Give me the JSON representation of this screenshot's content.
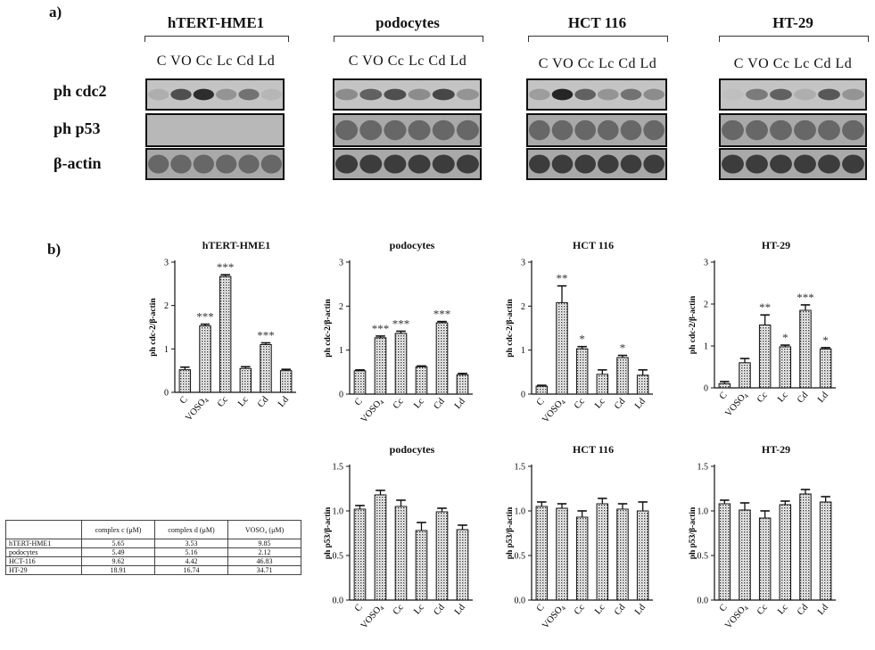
{
  "panel_a_label": "a)",
  "panel_b_label": "b)",
  "lanes_text": "C VO Cc Lc Cd Ld",
  "blot_cell_lines": [
    "hTERT-HME1",
    "podocytes",
    "HCT 116",
    "HT-29"
  ],
  "blot_rows": [
    "ph cdc2",
    "ph p53",
    "β-actin"
  ],
  "table": {
    "headers": [
      "complex c (μM)",
      "complex d (μM)",
      "VOSO₄ (μM)"
    ],
    "rows": [
      {
        "name": "hTERT-HME1",
        "c": "5.65",
        "d": "3.53",
        "v": "9.85"
      },
      {
        "name": "podocytes",
        "c": "5.49",
        "d": "5.16",
        "v": "2.12"
      },
      {
        "name": "HCT-116",
        "c": "9.62",
        "d": "4.42",
        "v": "46.83"
      },
      {
        "name": "HT-29",
        "c": "18.91",
        "d": "16.74",
        "v": "34.71"
      }
    ]
  },
  "chart_data": [
    {
      "type": "bar",
      "title": "hTERT-HME1",
      "ylabel": "ph cdc-2/β-actin",
      "ylim": [
        0,
        3
      ],
      "yticks": [
        "0",
        "1",
        "2",
        "3"
      ],
      "categories": [
        "C",
        "VOSO₄",
        "Cc",
        "Lc",
        "Cd",
        "Ld"
      ],
      "values": [
        0.52,
        1.53,
        2.67,
        0.55,
        1.1,
        0.5
      ],
      "errors": [
        0.06,
        0.04,
        0.04,
        0.04,
        0.04,
        0.03
      ],
      "annotations": [
        "",
        "***",
        "***",
        "",
        "***",
        ""
      ]
    },
    {
      "type": "bar",
      "title": "podocytes",
      "ylabel": "ph cdc-2/β-actin",
      "ylim": [
        0,
        3
      ],
      "yticks": [
        "0",
        "1",
        "2",
        "3"
      ],
      "categories": [
        "C",
        "VOSO₄",
        "Cc",
        "Lc",
        "Cd",
        "Ld"
      ],
      "values": [
        0.53,
        1.28,
        1.38,
        0.62,
        1.62,
        0.44
      ],
      "errors": [
        0.02,
        0.04,
        0.05,
        0.02,
        0.03,
        0.03
      ],
      "annotations": [
        "",
        "***",
        "***",
        "",
        "***",
        ""
      ]
    },
    {
      "type": "bar",
      "title": "HCT 116",
      "ylabel": "ph cdc-2/β-actin",
      "ylim": [
        0,
        3
      ],
      "yticks": [
        "0",
        "1",
        "2",
        "3"
      ],
      "categories": [
        "C",
        "VOSO₄",
        "Cc",
        "Lc",
        "Cd",
        "Ld"
      ],
      "values": [
        0.18,
        2.08,
        1.03,
        0.45,
        0.83,
        0.43
      ],
      "errors": [
        0.02,
        0.38,
        0.05,
        0.1,
        0.05,
        0.12
      ],
      "annotations": [
        "",
        "**",
        "*",
        "",
        "*",
        ""
      ]
    },
    {
      "type": "bar",
      "title": "HT-29",
      "ylabel": "ph cdc-2/β-actin",
      "ylim": [
        0,
        3
      ],
      "yticks": [
        "0",
        "1",
        "2",
        "3"
      ],
      "categories": [
        "C",
        "VOSO₄",
        "Cc",
        "Lc",
        "Cd",
        "Ld"
      ],
      "values": [
        0.1,
        0.6,
        1.5,
        0.98,
        1.85,
        0.93
      ],
      "errors": [
        0.05,
        0.1,
        0.24,
        0.04,
        0.13,
        0.03
      ],
      "annotations": [
        "",
        "",
        "**",
        "*",
        "***",
        "*"
      ]
    },
    {
      "type": "bar",
      "title": "podocytes",
      "ylabel": "ph p53/β-actin",
      "ylim": [
        0,
        1.5
      ],
      "yticks": [
        "0.0",
        "0.5",
        "1.0",
        "1.5"
      ],
      "categories": [
        "C",
        "VOSO₄",
        "Cc",
        "Lc",
        "Cd",
        "Ld"
      ],
      "values": [
        1.02,
        1.18,
        1.05,
        0.78,
        0.99,
        0.79
      ],
      "errors": [
        0.04,
        0.05,
        0.07,
        0.09,
        0.04,
        0.05
      ],
      "annotations": [
        "",
        "",
        "",
        "",
        "",
        ""
      ]
    },
    {
      "type": "bar",
      "title": "HCT 116",
      "ylabel": "ph p53/β-actin",
      "ylim": [
        0,
        1.5
      ],
      "yticks": [
        "0.0",
        "0.5",
        "1.0",
        "1.5"
      ],
      "categories": [
        "C",
        "VOSO₄",
        "Cc",
        "Lc",
        "Cd",
        "Ld"
      ],
      "values": [
        1.05,
        1.03,
        0.93,
        1.08,
        1.02,
        1.0
      ],
      "errors": [
        0.05,
        0.05,
        0.07,
        0.06,
        0.06,
        0.1
      ],
      "annotations": [
        "",
        "",
        "",
        "",
        "",
        ""
      ]
    },
    {
      "type": "bar",
      "title": "HT-29",
      "ylabel": "ph p53/β-actin",
      "ylim": [
        0,
        1.5
      ],
      "yticks": [
        "0.0",
        "0.5",
        "1.0",
        "1.5"
      ],
      "categories": [
        "C",
        "VOSO₄",
        "Cc",
        "Lc",
        "Cd",
        "Ld"
      ],
      "values": [
        1.08,
        1.01,
        0.92,
        1.07,
        1.19,
        1.1
      ],
      "errors": [
        0.04,
        0.08,
        0.08,
        0.04,
        0.05,
        0.06
      ],
      "annotations": [
        "",
        "",
        "",
        "",
        "",
        ""
      ]
    }
  ]
}
